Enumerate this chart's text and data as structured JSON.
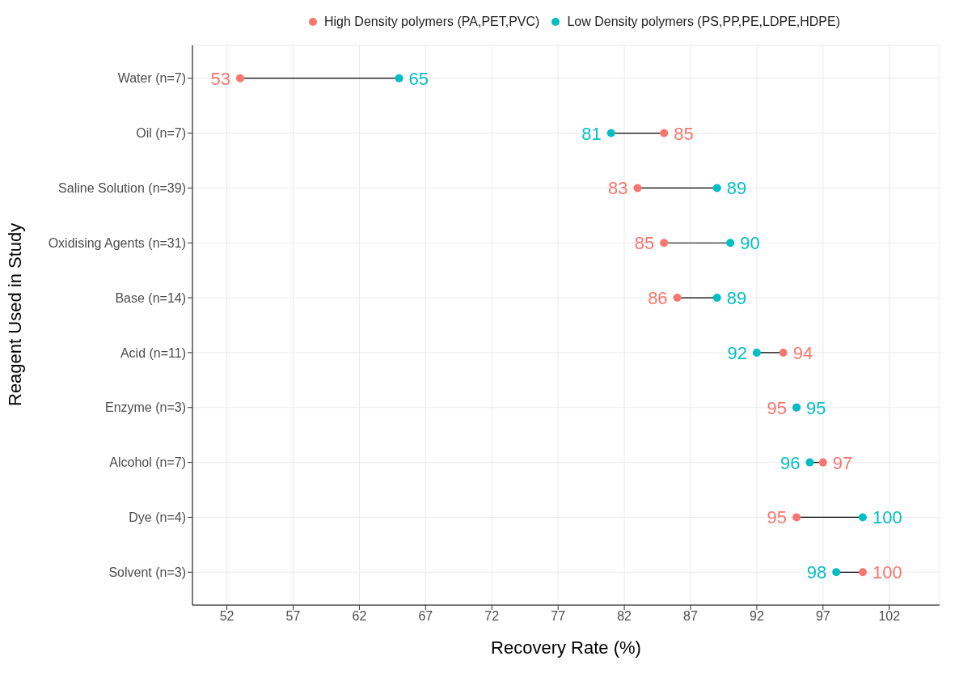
{
  "chart_data": {
    "type": "scatter",
    "orientation": "horizontal",
    "xlabel": "Recovery Rate (%)",
    "ylabel": "Reagent Used in Study",
    "categories": [
      "Water (n=7)",
      "Oil (n=7)",
      "Saline Solution (n=39)",
      "Oxidising Agents (n=31)",
      "Base (n=14)",
      "Acid (n=11)",
      "Enzyme (n=3)",
      "Alcohol (n=7)",
      "Dye (n=4)",
      "Solvent (n=3)"
    ],
    "series": [
      {
        "name": "High Density polymers (PA,PET,PVC)",
        "color": "#f8766d",
        "values": [
          53,
          85,
          83,
          85,
          86,
          94,
          95,
          97,
          95,
          100
        ]
      },
      {
        "name": "Low Density polymers (PS,PP,PE,LDPE,HDPE)",
        "color": "#00bfc4",
        "values": [
          65,
          81,
          89,
          90,
          89,
          92,
          95,
          96,
          100,
          98
        ]
      }
    ],
    "xlim": [
      49.4,
      105.8
    ],
    "xticks": [
      52,
      57,
      62,
      67,
      72,
      77,
      82,
      87,
      92,
      97,
      102
    ],
    "data_labels": true,
    "grid": true,
    "legend": "top",
    "marker": "circle"
  }
}
